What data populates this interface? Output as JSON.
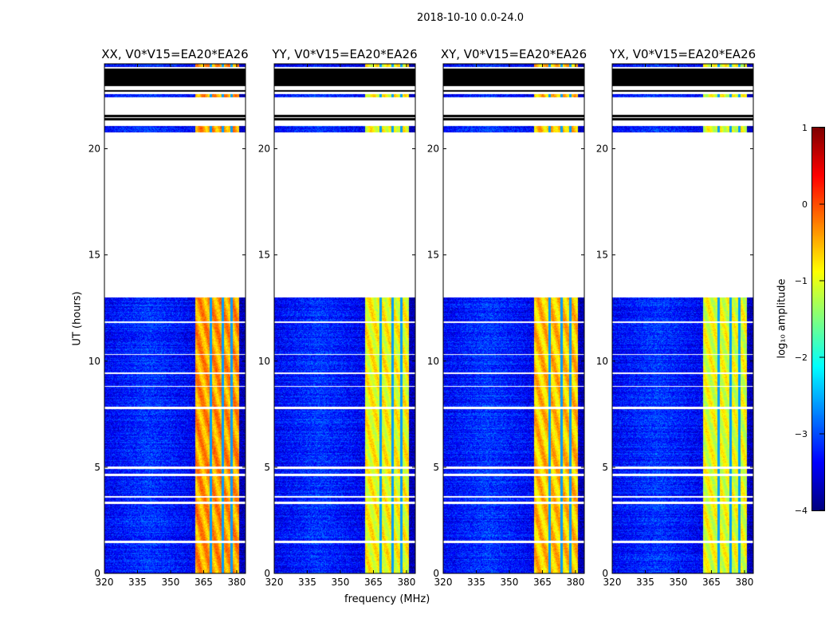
{
  "chart_data": {
    "type": "heatmap",
    "title": "2018-10-10 0.0-24.0",
    "xlabel": "frequency (MHz)",
    "ylabel": "UT (hours)",
    "xlim": [
      320,
      384
    ],
    "ylim": [
      0,
      24
    ],
    "xticks": [
      320,
      335,
      350,
      365,
      380
    ],
    "yticks": [
      0,
      5,
      10,
      15,
      20
    ],
    "colorbar": {
      "label": "log₁₀ amplitude",
      "range": [
        -4,
        1
      ],
      "ticks": [
        -4,
        -3,
        -2,
        -1,
        0,
        1
      ],
      "tick_labels": [
        "−4",
        "−3",
        "−2",
        "−1",
        "0",
        "1"
      ],
      "colormap": "jet"
    },
    "panels": [
      {
        "title": "XX, V0*V15=EA20*EA26",
        "band_level": -0.4
      },
      {
        "title": "YY, V0*V15=EA20*EA26",
        "band_level": -0.9
      },
      {
        "title": "XY, V0*V15=EA20*EA26",
        "band_level": -0.6
      },
      {
        "title": "YX, V0*V15=EA20*EA26",
        "band_level": -1.0
      }
    ],
    "valid_time_ranges_hours": [
      [
        0,
        1.45
      ],
      [
        1.55,
        3.3
      ],
      [
        3.4,
        3.58
      ],
      [
        3.65,
        4.6
      ],
      [
        4.7,
        4.95
      ],
      [
        5.05,
        7.75
      ],
      [
        7.85,
        8.8
      ],
      [
        8.85,
        9.4
      ],
      [
        9.5,
        10.3
      ],
      [
        10.35,
        11.8
      ],
      [
        11.9,
        13.0
      ],
      [
        20.8,
        21.1
      ],
      [
        22.45,
        22.6
      ],
      [
        23.85,
        24.0
      ]
    ],
    "flagged_time_ranges_hours": [
      [
        22.95,
        23.8
      ],
      [
        21.35,
        21.45
      ],
      [
        21.5,
        21.6
      ],
      [
        22.7,
        22.78
      ]
    ],
    "background_level": -3.1,
    "rfi_band_mhz": [
      361,
      381
    ],
    "band_gaps_mhz": [
      368.2,
      373.6,
      377.6
    ]
  }
}
